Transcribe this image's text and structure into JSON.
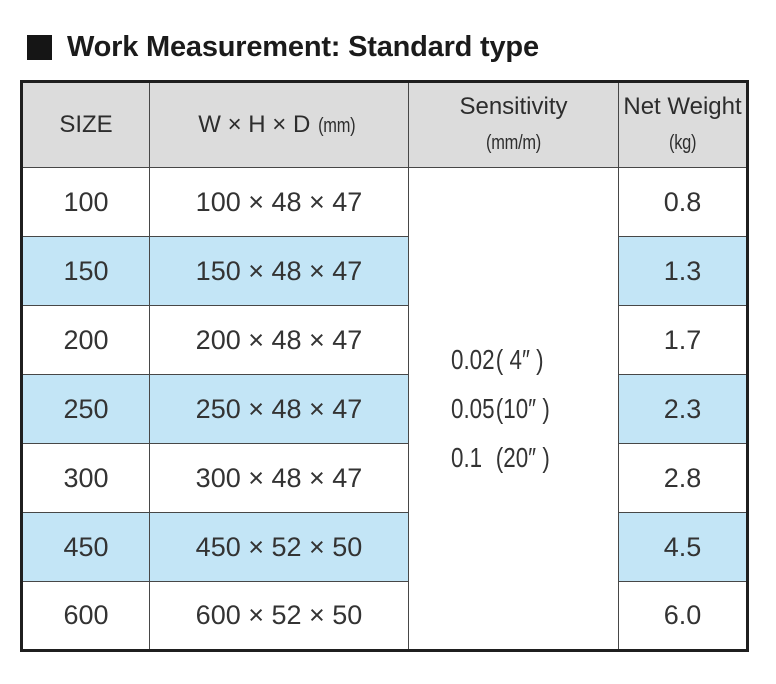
{
  "title": "Work Measurement: Standard type",
  "colors": {
    "row_highlight": "#c3e5f6",
    "header_bg": "#dcdcdc",
    "border_dark": "#1f1f1f",
    "grid_line": "#474747",
    "text": "#333333"
  },
  "table": {
    "columns": [
      {
        "id": "size",
        "label": "SIZE",
        "unit": ""
      },
      {
        "id": "dimensions",
        "label": "W × H × D",
        "unit": "(mm)"
      },
      {
        "id": "sensitivity",
        "label": "Sensitivity",
        "unit": "(mm/m)"
      },
      {
        "id": "net_weight",
        "label": "Net Weight",
        "unit": "(kg)"
      }
    ],
    "rows": [
      {
        "size": "100",
        "dimensions": "100 × 48 × 47",
        "net_weight": "0.8",
        "highlighted": false
      },
      {
        "size": "150",
        "dimensions": "150 × 48 × 47",
        "net_weight": "1.3",
        "highlighted": true
      },
      {
        "size": "200",
        "dimensions": "200 × 48 × 47",
        "net_weight": "1.7",
        "highlighted": false
      },
      {
        "size": "250",
        "dimensions": "250 × 48 × 47",
        "net_weight": "2.3",
        "highlighted": true
      },
      {
        "size": "300",
        "dimensions": "300 × 48 × 47",
        "net_weight": "2.8",
        "highlighted": false
      },
      {
        "size": "450",
        "dimensions": "450 × 52 × 50",
        "net_weight": "4.5",
        "highlighted": true
      },
      {
        "size": "600",
        "dimensions": "600 × 52 × 50",
        "net_weight": "6.0",
        "highlighted": false
      }
    ],
    "sensitivity_lines": [
      {
        "value": "0.02",
        "note": "( 4″ )"
      },
      {
        "value": "0.05",
        "note": "(10″ )"
      },
      {
        "value": "0.1",
        "note": "(20″ )"
      }
    ]
  }
}
